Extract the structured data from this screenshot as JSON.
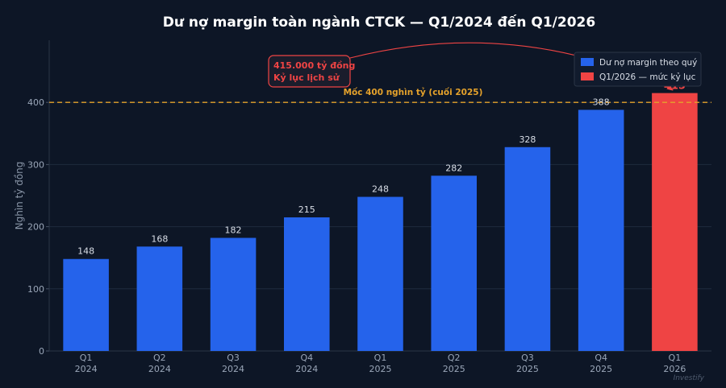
{
  "chart_data": {
    "type": "bar",
    "title": "Dư nợ margin toàn ngành CTCK — Q1/2024 đến Q1/2026",
    "ylabel": "Nghìn tỷ đồng",
    "ylim": [
      0,
      500
    ],
    "yticks": [
      0,
      100,
      200,
      300,
      400
    ],
    "grid": true,
    "categories": [
      "Q1\n2024",
      "Q2\n2024",
      "Q3\n2024",
      "Q4\n2024",
      "Q1\n2025",
      "Q2\n2025",
      "Q3\n2025",
      "Q4\n2025",
      "Q1\n2026"
    ],
    "values": [
      148,
      168,
      182,
      215,
      248,
      282,
      328,
      388,
      415
    ],
    "highlight_index": 8,
    "colors": {
      "bar": "#2563eb",
      "highlight": "#ef4444",
      "reference": "#e5a22b",
      "background": "#0d1626",
      "grid": "#1e2b3e"
    },
    "reference_line": {
      "value": 400,
      "label": "Mốc 400 nghìn tỷ (cuối 2025)"
    },
    "annotation": {
      "lines": [
        "415.000 tỷ đồng",
        "Kỷ lục lịch sử"
      ],
      "target_index": 8
    },
    "legend": {
      "position": "top-right",
      "entries": [
        {
          "label": "Dư nợ margin theo quý",
          "color": "#2563eb"
        },
        {
          "label": "Q1/2026 — mức kỷ lục",
          "color": "#ef4444"
        }
      ]
    }
  },
  "watermark": "Investify"
}
